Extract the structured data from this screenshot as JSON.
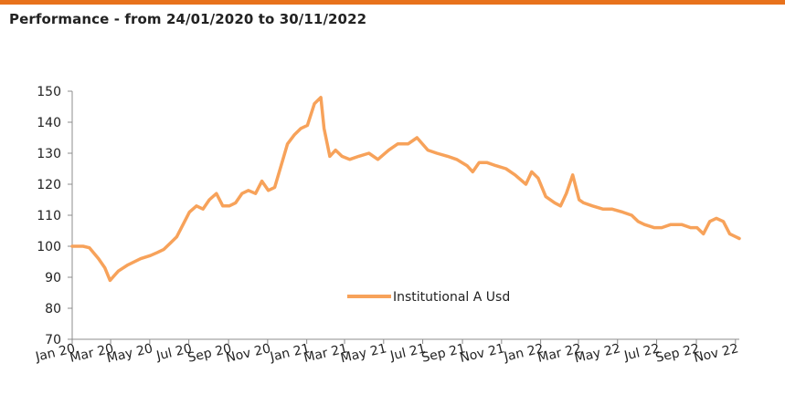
{
  "colors": {
    "accent_rule": "#E8721C",
    "series": "#F7A25A",
    "axis": "#8c8c8c"
  },
  "header": {
    "title": "Performance - from 24/01/2020 to 30/11/2022"
  },
  "chart_data": {
    "type": "line",
    "title": "Performance - from 24/01/2020 to 30/11/2022",
    "xlabel": "",
    "ylabel": "",
    "ylim": [
      70,
      150
    ],
    "yticks": [
      70,
      80,
      90,
      100,
      110,
      120,
      130,
      140,
      150
    ],
    "xlim": [
      "2020-01-24",
      "2022-11-30"
    ],
    "xtick_labels": [
      "Jan 20",
      "Mar 20",
      "May 20",
      "Jul 20",
      "Sep 20",
      "Nov 20",
      "Jan 21",
      "Mar 21",
      "May 21",
      "Jul 21",
      "Sep 21",
      "Nov 21",
      "Jan 22",
      "Mar 22",
      "May 22",
      "Jul 22",
      "Sep 22",
      "Nov 22"
    ],
    "xtick_dates": [
      "2020-01-24",
      "2020-03-24",
      "2020-05-24",
      "2020-07-24",
      "2020-09-24",
      "2020-11-24",
      "2021-01-24",
      "2021-03-24",
      "2021-05-24",
      "2021-07-24",
      "2021-09-24",
      "2021-11-24",
      "2022-01-24",
      "2022-03-24",
      "2022-05-24",
      "2022-07-24",
      "2022-09-24",
      "2022-11-24"
    ],
    "grid": false,
    "legend": "center-bottom",
    "series": [
      {
        "name": "Institutional A Usd",
        "x": [
          "2020-01-24",
          "2020-02-10",
          "2020-02-20",
          "2020-03-05",
          "2020-03-15",
          "2020-03-23",
          "2020-04-05",
          "2020-04-20",
          "2020-05-10",
          "2020-05-25",
          "2020-06-05",
          "2020-06-15",
          "2020-06-25",
          "2020-07-05",
          "2020-07-15",
          "2020-07-25",
          "2020-08-05",
          "2020-08-15",
          "2020-08-25",
          "2020-09-05",
          "2020-09-15",
          "2020-09-25",
          "2020-10-05",
          "2020-10-15",
          "2020-10-25",
          "2020-11-05",
          "2020-11-15",
          "2020-11-25",
          "2020-12-05",
          "2020-12-15",
          "2020-12-25",
          "2021-01-05",
          "2021-01-15",
          "2021-01-25",
          "2021-02-05",
          "2021-02-15",
          "2021-02-20",
          "2021-03-01",
          "2021-03-10",
          "2021-03-20",
          "2021-04-01",
          "2021-04-15",
          "2021-05-01",
          "2021-05-15",
          "2021-06-01",
          "2021-06-15",
          "2021-07-01",
          "2021-07-15",
          "2021-08-01",
          "2021-08-15",
          "2021-09-01",
          "2021-09-15",
          "2021-10-01",
          "2021-10-10",
          "2021-10-20",
          "2021-11-01",
          "2021-11-15",
          "2021-12-01",
          "2021-12-15",
          "2022-01-01",
          "2022-01-10",
          "2022-01-20",
          "2022-02-01",
          "2022-02-15",
          "2022-02-24",
          "2022-03-05",
          "2022-03-15",
          "2022-03-25",
          "2022-04-01",
          "2022-04-15",
          "2022-05-01",
          "2022-05-15",
          "2022-06-01",
          "2022-06-15",
          "2022-06-25",
          "2022-07-05",
          "2022-07-20",
          "2022-08-01",
          "2022-08-15",
          "2022-09-01",
          "2022-09-15",
          "2022-09-25",
          "2022-10-05",
          "2022-10-15",
          "2022-10-25",
          "2022-11-05",
          "2022-11-15",
          "2022-11-25",
          "2022-11-30"
        ],
        "values": [
          100,
          100,
          99.5,
          96,
          93,
          89,
          92,
          94,
          96,
          97,
          98,
          99,
          101,
          103,
          107,
          111,
          113,
          112,
          115,
          117,
          113,
          113,
          114,
          117,
          118,
          117,
          121,
          118,
          119,
          126,
          133,
          136,
          138,
          139,
          146,
          148,
          138,
          129,
          131,
          129,
          128,
          129,
          130,
          128,
          131,
          133,
          133,
          135,
          131,
          130,
          129,
          128,
          126,
          124,
          127,
          127,
          126,
          125,
          123,
          120,
          124,
          122,
          116,
          114,
          113,
          117,
          123,
          115,
          114,
          113,
          112,
          112,
          111,
          110,
          108,
          107,
          106,
          106,
          107,
          107,
          106,
          106,
          104,
          108,
          109,
          108,
          104,
          103,
          102.5
        ]
      }
    ]
  }
}
